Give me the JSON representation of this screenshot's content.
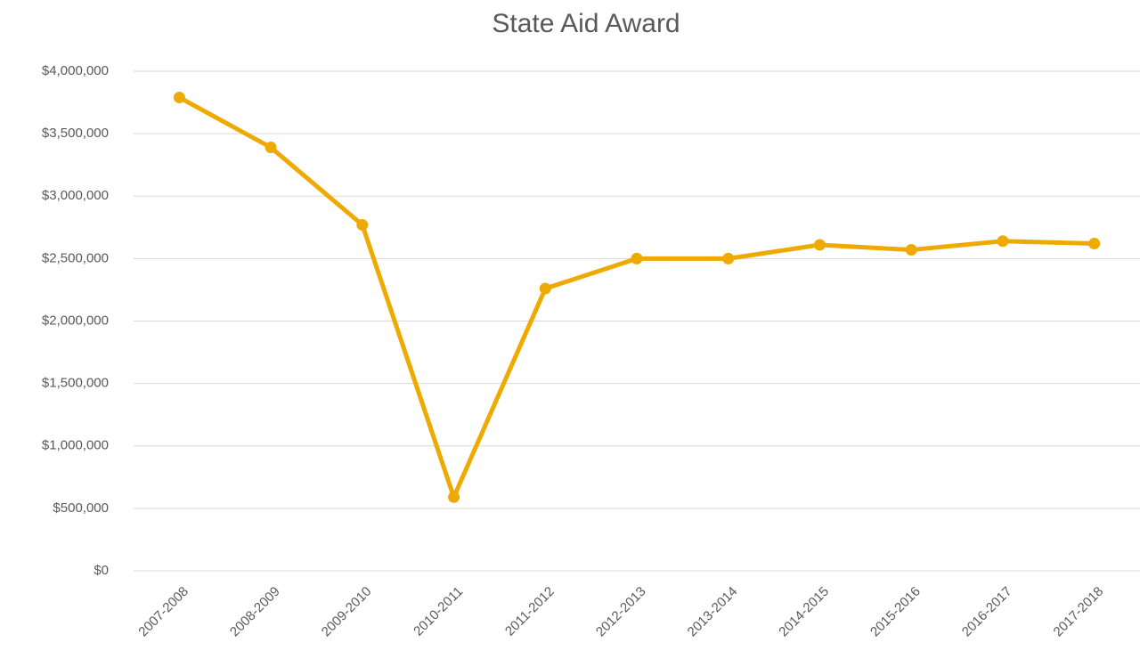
{
  "chart_data": {
    "type": "line",
    "title": "State Aid Award",
    "categories": [
      "2007-2008",
      "2008-2009",
      "2009-2010",
      "2010-2011",
      "2011-2012",
      "2012-2013",
      "2013-2014",
      "2014-2015",
      "2015-2016",
      "2016-2017",
      "2017-2018"
    ],
    "series": [
      {
        "name": "State Aid Award",
        "color": "#eeaa00",
        "values": [
          3790000,
          3390000,
          2770000,
          590000,
          2260000,
          2500000,
          2500000,
          2610000,
          2570000,
          2640000,
          2620000
        ]
      }
    ],
    "ylim": [
      0,
      4000000
    ],
    "yticks": [
      {
        "value": 0,
        "label": "$0"
      },
      {
        "value": 500000,
        "label": "$500,000"
      },
      {
        "value": 1000000,
        "label": "$1,000,000"
      },
      {
        "value": 1500000,
        "label": "$1,500,000"
      },
      {
        "value": 2000000,
        "label": "$2,000,000"
      },
      {
        "value": 2500000,
        "label": "$2,500,000"
      },
      {
        "value": 3000000,
        "label": "$3,000,000"
      },
      {
        "value": 3500000,
        "label": "$3,500,000"
      },
      {
        "value": 4000000,
        "label": "$4,000,000"
      }
    ],
    "grid": true
  }
}
